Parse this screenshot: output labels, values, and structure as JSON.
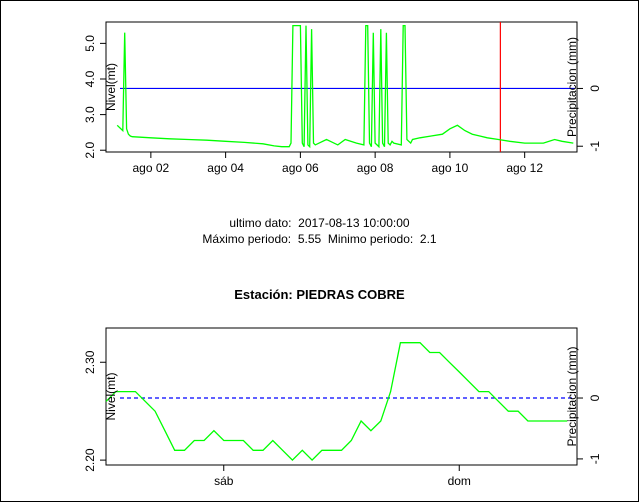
{
  "info": {
    "last_data_label": "ultimo dato:",
    "last_data_value": "2017-08-13 10:00:00",
    "max_label": "Máximo periodo:",
    "max_value": "5.55",
    "min_label": "Minimo periodo:",
    "min_value": "2.1"
  },
  "station": {
    "label": "Estación: PIEDRAS COBRE"
  },
  "colors": {
    "level": "#00ff00",
    "precip": "#0000ff",
    "marker": "#ff0000",
    "axis": "#000000"
  },
  "chart_data": [
    {
      "type": "line",
      "ylabel": "Nivel(mt)",
      "y2label": "Precipitacion (mm)",
      "x_ticks": [
        "ago 02",
        "ago 04",
        "ago 06",
        "ago 08",
        "ago 10",
        "ago 12"
      ],
      "x_tick_days": [
        2,
        4,
        6,
        8,
        10,
        12
      ],
      "xlim_days": [
        0.8,
        13.4
      ],
      "y_ticks": [
        "2.0",
        "3.0",
        "4.0",
        "5.0"
      ],
      "y_tick_values": [
        2.0,
        3.0,
        4.0,
        5.0
      ],
      "ylim": [
        1.95,
        5.6
      ],
      "y2_ticks": [
        "-1",
        "0"
      ],
      "y2_tick_values": [
        -1,
        0
      ],
      "y2lim": [
        -1.1,
        1.15
      ],
      "level_series": {
        "name": "Nivel",
        "x_days": [
          1.1,
          1.25,
          1.3,
          1.35,
          1.4,
          1.45,
          1.5,
          2.0,
          2.5,
          3.0,
          3.5,
          4.0,
          4.5,
          5.0,
          5.3,
          5.5,
          5.7,
          5.75,
          5.8,
          5.85,
          5.9,
          5.95,
          6.0,
          6.05,
          6.1,
          6.15,
          6.2,
          6.25,
          6.3,
          6.35,
          6.4,
          6.5,
          6.7,
          6.8,
          7.0,
          7.2,
          7.5,
          7.7,
          7.75,
          7.8,
          7.85,
          7.9,
          7.95,
          8.0,
          8.05,
          8.1,
          8.15,
          8.2,
          8.25,
          8.3,
          8.35,
          8.4,
          8.45,
          8.5,
          8.7,
          8.75,
          8.8,
          8.85,
          8.9,
          8.95,
          9.0,
          9.2,
          9.5,
          9.8,
          10.0,
          10.2,
          10.4,
          10.6,
          10.8,
          11.0,
          11.3,
          11.6,
          12.0,
          12.5,
          12.8,
          13.0,
          13.3
        ],
        "values": [
          2.7,
          2.55,
          5.3,
          2.6,
          2.45,
          2.4,
          2.38,
          2.35,
          2.32,
          2.3,
          2.28,
          2.25,
          2.22,
          2.18,
          2.12,
          2.1,
          2.1,
          2.2,
          5.5,
          5.5,
          5.5,
          5.5,
          5.5,
          2.2,
          2.1,
          5.5,
          2.15,
          2.1,
          5.4,
          2.2,
          2.15,
          2.2,
          2.3,
          2.25,
          2.15,
          2.3,
          2.2,
          2.15,
          5.5,
          5.5,
          2.2,
          2.1,
          5.3,
          2.2,
          2.15,
          2.1,
          5.4,
          2.2,
          2.1,
          5.3,
          2.2,
          2.15,
          2.25,
          2.2,
          2.15,
          5.5,
          5.5,
          2.3,
          2.25,
          2.2,
          2.3,
          2.35,
          2.4,
          2.45,
          2.6,
          2.7,
          2.55,
          2.45,
          2.4,
          2.35,
          2.3,
          2.25,
          2.2,
          2.2,
          2.3,
          2.25,
          2.2
        ]
      },
      "precip_series": {
        "name": "Precipitacion",
        "value": 0
      },
      "marker_day": 11.35
    },
    {
      "type": "line",
      "ylabel": "Nivel(mt)",
      "y2label": "Precipitacion (mm)",
      "x_ticks": [
        "sáb",
        "dom"
      ],
      "x_tick_hours": [
        12,
        36
      ],
      "xlim_hours": [
        0,
        48
      ],
      "y_ticks": [
        "2.20",
        "2.30"
      ],
      "y_tick_values": [
        2.2,
        2.3
      ],
      "ylim": [
        2.195,
        2.335
      ],
      "y2_ticks": [
        "-1",
        "0"
      ],
      "y2_tick_values": [
        -1,
        0
      ],
      "y2lim": [
        -1.1,
        1.15
      ],
      "level_series": {
        "name": "Nivel",
        "x_hours": [
          0,
          1,
          2,
          3,
          4,
          5,
          6,
          7,
          8,
          9,
          10,
          11,
          12,
          13,
          14,
          15,
          16,
          17,
          18,
          19,
          20,
          21,
          22,
          23,
          24,
          25,
          26,
          27,
          28,
          29,
          30,
          31,
          32,
          33,
          34,
          35,
          36,
          37,
          38,
          39,
          40,
          41,
          42,
          43,
          44,
          45,
          46,
          47
        ],
        "values": [
          2.26,
          2.27,
          2.27,
          2.27,
          2.26,
          2.25,
          2.23,
          2.21,
          2.21,
          2.22,
          2.22,
          2.23,
          2.22,
          2.22,
          2.22,
          2.21,
          2.21,
          2.22,
          2.21,
          2.2,
          2.21,
          2.2,
          2.21,
          2.21,
          2.21,
          2.22,
          2.24,
          2.23,
          2.24,
          2.27,
          2.32,
          2.32,
          2.32,
          2.31,
          2.31,
          2.3,
          2.29,
          2.28,
          2.27,
          2.27,
          2.26,
          2.25,
          2.25,
          2.24,
          2.24,
          2.24,
          2.24,
          2.24
        ]
      },
      "precip_series": {
        "name": "Precipitacion",
        "value": 0,
        "style": "dashed"
      }
    }
  ]
}
